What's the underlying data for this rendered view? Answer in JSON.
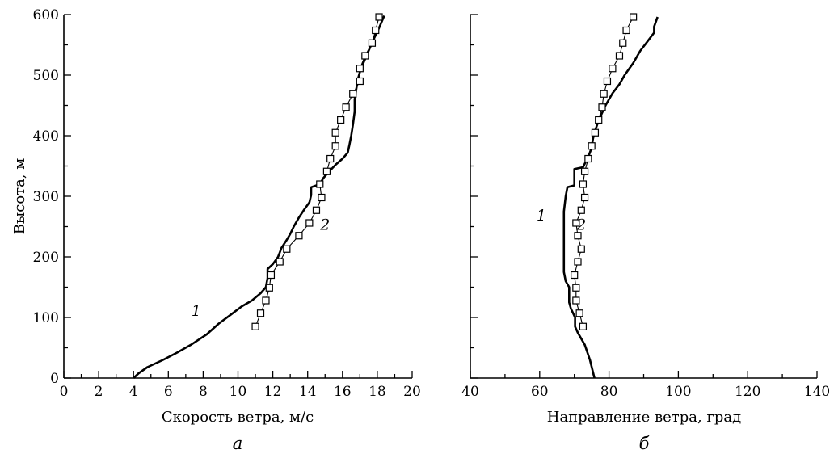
{
  "chart_data": [
    {
      "type": "line",
      "panel": "a",
      "xlabel": "Скорость ветра, м/с",
      "ylabel": "Высота, м",
      "subtitle": "а",
      "xlim": [
        0,
        20
      ],
      "ylim": [
        0,
        600
      ],
      "xticks": [
        0,
        2,
        4,
        6,
        8,
        10,
        12,
        14,
        16,
        18,
        20
      ],
      "yticks": [
        0,
        100,
        200,
        300,
        400,
        500,
        600
      ],
      "grid": false,
      "series": [
        {
          "name": "1",
          "style": "solid-thick",
          "points": [
            [
              4.0,
              0
            ],
            [
              4.3,
              8
            ],
            [
              4.8,
              18
            ],
            [
              5.7,
              30
            ],
            [
              6.5,
              42
            ],
            [
              7.3,
              55
            ],
            [
              8.2,
              72
            ],
            [
              8.9,
              90
            ],
            [
              9.6,
              105
            ],
            [
              10.2,
              118
            ],
            [
              10.8,
              128
            ],
            [
              11.3,
              140
            ],
            [
              11.6,
              150
            ],
            [
              11.7,
              165
            ],
            [
              11.7,
              180
            ],
            [
              12.0,
              188
            ],
            [
              12.3,
              200
            ],
            [
              12.5,
              215
            ],
            [
              12.8,
              228
            ],
            [
              13.0,
              238
            ],
            [
              13.2,
              250
            ],
            [
              13.5,
              265
            ],
            [
              13.8,
              278
            ],
            [
              14.1,
              290
            ],
            [
              14.2,
              302
            ],
            [
              14.2,
              315
            ],
            [
              14.7,
              320
            ],
            [
              14.9,
              330
            ],
            [
              15.2,
              340
            ],
            [
              15.6,
              352
            ],
            [
              16.0,
              362
            ],
            [
              16.3,
              372
            ],
            [
              16.4,
              385
            ],
            [
              16.5,
              400
            ],
            [
              16.6,
              418
            ],
            [
              16.7,
              440
            ],
            [
              16.7,
              460
            ],
            [
              16.8,
              478
            ],
            [
              16.9,
              495
            ],
            [
              17.0,
              505
            ],
            [
              17.2,
              520
            ],
            [
              17.5,
              540
            ],
            [
              17.8,
              560
            ],
            [
              18.1,
              578
            ],
            [
              18.4,
              598
            ]
          ]
        },
        {
          "name": "2",
          "style": "thin-square-markers",
          "points": [
            [
              11.0,
              85
            ],
            [
              11.3,
              107
            ],
            [
              11.6,
              128
            ],
            [
              11.8,
              149
            ],
            [
              11.9,
              170
            ],
            [
              12.4,
              192
            ],
            [
              12.8,
              213
            ],
            [
              13.5,
              235
            ],
            [
              14.1,
              256
            ],
            [
              14.5,
              277
            ],
            [
              14.8,
              298
            ],
            [
              14.7,
              320
            ],
            [
              15.1,
              341
            ],
            [
              15.3,
              362
            ],
            [
              15.6,
              383
            ],
            [
              15.6,
              405
            ],
            [
              15.9,
              426
            ],
            [
              16.2,
              447
            ],
            [
              16.6,
              469
            ],
            [
              17.0,
              490
            ],
            [
              17.0,
              511
            ],
            [
              17.3,
              532
            ],
            [
              17.7,
              553
            ],
            [
              17.9,
              574
            ],
            [
              18.1,
              596
            ]
          ]
        }
      ],
      "curve_labels": [
        {
          "text": "1",
          "x": 7.6,
          "y": 103
        },
        {
          "text": "2",
          "x": 15.0,
          "y": 245
        }
      ]
    },
    {
      "type": "line",
      "panel": "b",
      "xlabel": "Направление ветра, град",
      "ylabel": "",
      "subtitle": "б",
      "xlim": [
        40,
        140
      ],
      "ylim": [
        0,
        600
      ],
      "xticks": [
        40,
        60,
        80,
        100,
        120,
        140
      ],
      "yticks": [
        0,
        100,
        200,
        300,
        400,
        500,
        600
      ],
      "grid": false,
      "series": [
        {
          "name": "1",
          "style": "solid-thick",
          "points": [
            [
              75.8,
              0
            ],
            [
              74.5,
              30
            ],
            [
              73.0,
              55
            ],
            [
              71.0,
              75
            ],
            [
              70.2,
              85
            ],
            [
              70.2,
              100
            ],
            [
              69.0,
              115
            ],
            [
              68.5,
              125
            ],
            [
              68.5,
              150
            ],
            [
              67.5,
              160
            ],
            [
              67.0,
              175
            ],
            [
              67.0,
              190
            ],
            [
              67.0,
              230
            ],
            [
              67.0,
              275
            ],
            [
              67.5,
              300
            ],
            [
              68.0,
              315
            ],
            [
              70.0,
              318
            ],
            [
              70.0,
              345
            ],
            [
              72.5,
              348
            ],
            [
              74.0,
              365
            ],
            [
              75.0,
              380
            ],
            [
              75.5,
              400
            ],
            [
              77.0,
              425
            ],
            [
              79.0,
              450
            ],
            [
              81.0,
              470
            ],
            [
              83.0,
              485
            ],
            [
              84.5,
              500
            ],
            [
              87.0,
              520
            ],
            [
              89.0,
              540
            ],
            [
              91.0,
              555
            ],
            [
              93.0,
              570
            ],
            [
              93.0,
              580
            ],
            [
              94.0,
              596
            ]
          ]
        },
        {
          "name": "2",
          "style": "thin-square-markers",
          "points": [
            [
              72.5,
              85
            ],
            [
              71.5,
              107
            ],
            [
              70.5,
              128
            ],
            [
              70.5,
              149
            ],
            [
              70.0,
              170
            ],
            [
              71.0,
              192
            ],
            [
              72.0,
              213
            ],
            [
              71.0,
              235
            ],
            [
              70.5,
              256
            ],
            [
              72.0,
              277
            ],
            [
              73.0,
              298
            ],
            [
              72.5,
              320
            ],
            [
              73.0,
              341
            ],
            [
              74.0,
              362
            ],
            [
              75.0,
              383
            ],
            [
              76.0,
              405
            ],
            [
              77.0,
              426
            ],
            [
              78.0,
              447
            ],
            [
              78.5,
              469
            ],
            [
              79.5,
              490
            ],
            [
              81.0,
              511
            ],
            [
              83.0,
              532
            ],
            [
              84.0,
              553
            ],
            [
              85.0,
              574
            ],
            [
              87.0,
              596
            ]
          ]
        }
      ],
      "curve_labels": [
        {
          "text": "1",
          "x": 60.5,
          "y": 260
        },
        {
          "text": "2",
          "x": 72.0,
          "y": 245
        }
      ]
    }
  ]
}
